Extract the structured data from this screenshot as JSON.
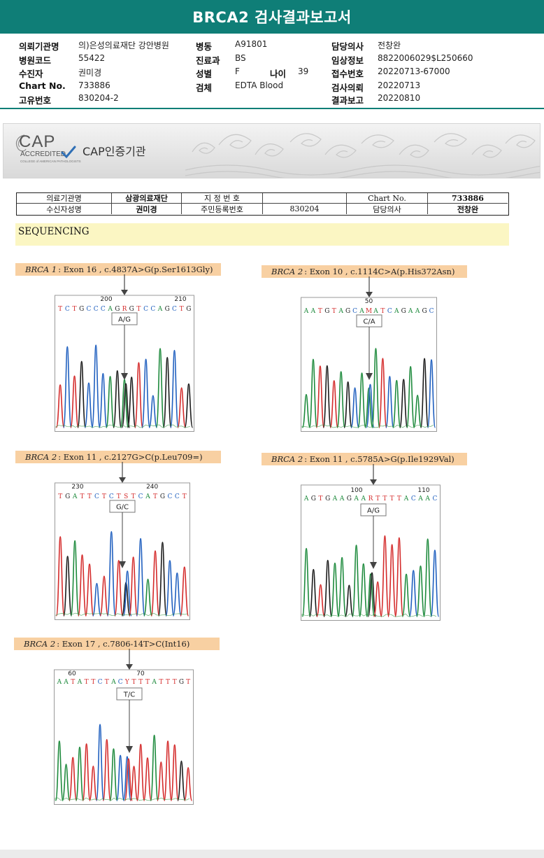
{
  "header": {
    "title": "BRCA2 검사결과보고서"
  },
  "info": {
    "institution_label": "의뢰기관명",
    "institution_value": "의)은성의료재단 강안병원",
    "ward_label": "병동",
    "ward_value": "A91801",
    "doctor_label": "담당의사",
    "doctor_value": "전창완",
    "hospital_code_label": "병원코드",
    "hospital_code_value": "55422",
    "dept_label": "진료과",
    "dept_value": "BS",
    "clinical_label": "임상정보",
    "clinical_value": "8822006029$L250660",
    "patient_label": "수진자",
    "patient_value": "권미경",
    "sex_label": "성별",
    "sex_value": "F",
    "age_label": "나이",
    "age_value": "39",
    "receipt_label": "접수번호",
    "receipt_value": "20220713-67000",
    "chart_label": "Chart No.",
    "chart_value": "733886",
    "specimen_label": "검체",
    "specimen_value": "EDTA Blood",
    "request_label": "검사의뢰",
    "request_value": "20220713",
    "unique_label": "고유번호",
    "unique_value": "830204-2",
    "report_label": "결과보고",
    "report_value": "20220810"
  },
  "cap": {
    "logo_text": "CAP",
    "accredited": "ACCREDITED",
    "college": "COLLEGE of AMERICAN PATHOLOGISTS",
    "title": "CAP인증기관"
  },
  "patient_table": {
    "inst_label": "의료기관명",
    "inst_value": "삼광의료재단",
    "name_label": "수신자성명",
    "name_value": "권미경",
    "designation_label": "지 정 번 호",
    "designation_value": "",
    "resident_label": "주민등록번호",
    "resident_value": "830204",
    "chart_label": "Chart No.",
    "chart_value": "733886",
    "doctor_label": "담당의사",
    "doctor_value": "전창완"
  },
  "section": {
    "sequencing": "SEQUENCING"
  },
  "variants": [
    {
      "gene": "BRCA 1",
      "detail": ": Exon 16 , c.4837A>G(p.Ser1613Gly)",
      "sequence": "TCTGCCCAGRGTCCAGCTG",
      "pos_a": "200",
      "pos_b": "210",
      "call": "A/G"
    },
    {
      "gene": "BRCA 2",
      "detail": ": Exon 10 , c.1114C>A(p.His372Asn)",
      "sequence": "AATGTAGCAMATCAGAAGC",
      "pos_a": "50",
      "pos_b": "",
      "call": "C/A"
    },
    {
      "gene": "BRCA 2",
      "detail": ": Exon 11 , c.2127G>C(p.Leu709=)",
      "sequence": "TGATTCTCTSTCATGCCT",
      "pos_a": "230",
      "pos_b": "240",
      "call": "G/C"
    },
    {
      "gene": "BRCA 2",
      "detail": ": Exon 11 , c.5785A>G(p.Ile1929Val)",
      "sequence": "AGTGAAGAARTTTTACAAC",
      "pos_a": "100",
      "pos_b": "110",
      "call": "A/G"
    },
    {
      "gene": "BRCA 2",
      "detail": ": Exon 17 , c.7806-14T>C(Int16)",
      "sequence": "AATATTCTACYTTTATTTGT",
      "pos_a": "60",
      "pos_b": "70",
      "call": "T/C"
    }
  ],
  "colors": {
    "teal": "#0f7e77",
    "A": "#1d8a3c",
    "C": "#1f5fbf",
    "G": "#1a1a1a",
    "T": "#d42a2a"
  }
}
